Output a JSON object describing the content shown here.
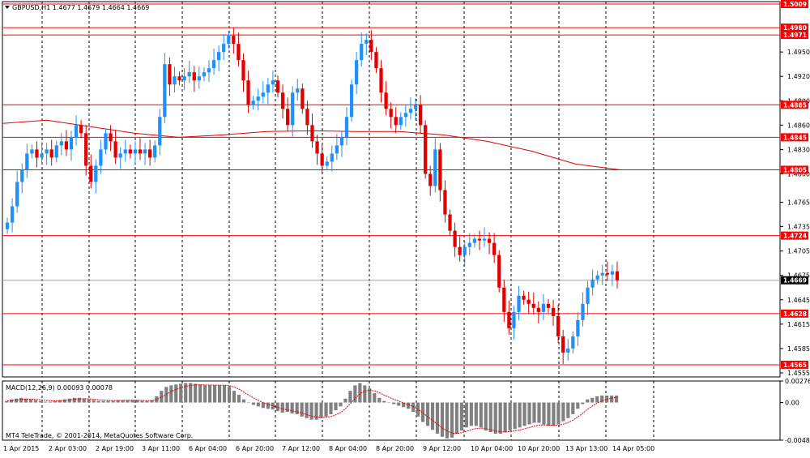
{
  "header": {
    "symbol_line": "GBPUSD,H1  1.4677 1.4679 1.4664 1.4669",
    "macd_line": "MACD(12,26,9) 0.00093 0.00078",
    "copyright": "MT4 TeleTrade, © 2001-2014, MetaQuotes Software Corp."
  },
  "colors": {
    "bull": "#1e90ff",
    "bear": "#e00000",
    "grid": "#000000",
    "level": "#ff0000",
    "ma": "#e00000",
    "macd_hist": "#808080",
    "macd_signal": "#e00000"
  },
  "chart_data": [
    {
      "type": "candlestick",
      "symbol": "GBPUSD",
      "timeframe": "H1",
      "ohlc_current": {
        "open": 1.4677,
        "high": 1.4679,
        "low": 1.4664,
        "close": 1.4669
      },
      "x_ticks": [
        "1 Apr 2015",
        "2 Apr 03:00",
        "2 Apr 19:00",
        "3 Apr 11:00",
        "6 Apr 04:00",
        "6 Apr 20:00",
        "7 Apr 12:00",
        "8 Apr 04:00",
        "8 Apr 20:00",
        "9 Apr 12:00",
        "10 Apr 04:00",
        "10 Apr 20:00",
        "13 Apr 13:00",
        "14 Apr 05:00"
      ],
      "y_ticks": [
        1.495,
        1.492,
        1.489,
        1.486,
        1.483,
        1.48,
        1.4765,
        1.4735,
        1.4705,
        1.4675,
        1.4645,
        1.4615,
        1.4585,
        1.4555
      ],
      "ylim": [
        1.455,
        1.5012
      ],
      "levels": [
        1.5009,
        1.498,
        1.4971,
        1.4885,
        1.4845,
        1.4805,
        1.4724,
        1.4628,
        1.4565
      ],
      "current_price": 1.4669,
      "closes": [
        1.474,
        1.476,
        1.479,
        1.4805,
        1.4825,
        1.483,
        1.482,
        1.4825,
        1.483,
        1.482,
        1.4835,
        1.484,
        1.483,
        1.4845,
        1.486,
        1.485,
        1.481,
        1.479,
        1.481,
        1.483,
        1.485,
        1.484,
        1.482,
        1.4825,
        1.483,
        1.4825,
        1.483,
        1.4825,
        1.483,
        1.482,
        1.4835,
        1.487,
        1.4935,
        1.491,
        1.492,
        1.4915,
        1.492,
        1.4925,
        1.4915,
        1.492,
        1.4925,
        1.493,
        1.494,
        1.495,
        1.496,
        1.497,
        1.496,
        1.494,
        1.4915,
        1.4885,
        1.489,
        1.4895,
        1.49,
        1.491,
        1.4915,
        1.49,
        1.488,
        1.486,
        1.49,
        1.4905,
        1.488,
        1.486,
        1.484,
        1.4825,
        1.481,
        1.4815,
        1.4825,
        1.4835,
        1.4845,
        1.487,
        1.491,
        1.494,
        1.496,
        1.4965,
        1.495,
        1.493,
        1.49,
        1.488,
        1.487,
        1.486,
        1.487,
        1.4875,
        1.488,
        1.4885,
        1.486,
        1.48,
        1.4785,
        1.483,
        1.478,
        1.475,
        1.473,
        1.471,
        1.47,
        1.471,
        1.4715,
        1.472,
        1.4718,
        1.472,
        1.4715,
        1.47,
        1.466,
        1.463,
        1.461,
        1.463,
        1.465,
        1.4645,
        1.464,
        1.4635,
        1.463,
        1.464,
        1.4635,
        1.4625,
        1.46,
        1.458,
        1.4585,
        1.46,
        1.462,
        1.464,
        1.466,
        1.467,
        1.4675,
        1.4678,
        1.4676,
        1.468,
        1.4669
      ],
      "ma_points": [
        1.4862,
        1.4866,
        1.4858,
        1.485,
        1.4845,
        1.4848,
        1.4852,
        1.4853,
        1.4852,
        1.4852,
        1.4848,
        1.484,
        1.4828,
        1.4812,
        1.4805
      ],
      "macd": {
        "ylim": [
          -0.00483,
          0.00276
        ],
        "y_ticks": [
          0.00276,
          0.0,
          -0.00483
        ],
        "hist": [
          0.0002,
          0.0004,
          0.0005,
          0.0006,
          0.0005,
          0.0004,
          0.0003,
          0.0002,
          0.0001,
          0.0001,
          0.0002,
          0.0003,
          0.0004,
          0.0005,
          0.0006,
          0.0006,
          0.0005,
          0.0004,
          0.0003,
          0.0002,
          0.0002,
          0.0002,
          0.0002,
          0.0003,
          0.0003,
          0.0003,
          0.0003,
          0.0003,
          0.0002,
          0.0002,
          0.0003,
          0.0008,
          0.0015,
          0.002,
          0.0022,
          0.0023,
          0.0024,
          0.0025,
          0.0025,
          0.0024,
          0.0023,
          0.0022,
          0.0022,
          0.0022,
          0.0022,
          0.0022,
          0.002,
          0.0015,
          0.001,
          0.0004,
          0.0,
          -0.0003,
          -0.0005,
          -0.0007,
          -0.0008,
          -0.0009,
          -0.0011,
          -0.0013,
          -0.0012,
          -0.0014,
          -0.0015,
          -0.0018,
          -0.002,
          -0.0022,
          -0.0022,
          -0.002,
          -0.0018,
          -0.0015,
          -0.001,
          -0.0005,
          0.0005,
          0.0015,
          0.0022,
          0.0025,
          0.0022,
          0.0018,
          0.0012,
          0.0006,
          0.0002,
          0.0,
          -0.0002,
          -0.0004,
          -0.0006,
          -0.0008,
          -0.0012,
          -0.0018,
          -0.0025,
          -0.003,
          -0.0035,
          -0.004,
          -0.0044,
          -0.0046,
          -0.0045,
          -0.004,
          -0.0036,
          -0.0032,
          -0.003,
          -0.003,
          -0.0032,
          -0.0036,
          -0.0038,
          -0.004,
          -0.004,
          -0.0038,
          -0.0036,
          -0.0034,
          -0.0032,
          -0.003,
          -0.0028,
          -0.0026,
          -0.0026,
          -0.0028,
          -0.003,
          -0.003,
          -0.0028,
          -0.0024,
          -0.002,
          -0.0015,
          -0.0008,
          -0.0002,
          0.0004,
          0.0006,
          0.0008,
          0.0009,
          0.0009,
          0.0009,
          0.0009
        ]
      }
    }
  ]
}
